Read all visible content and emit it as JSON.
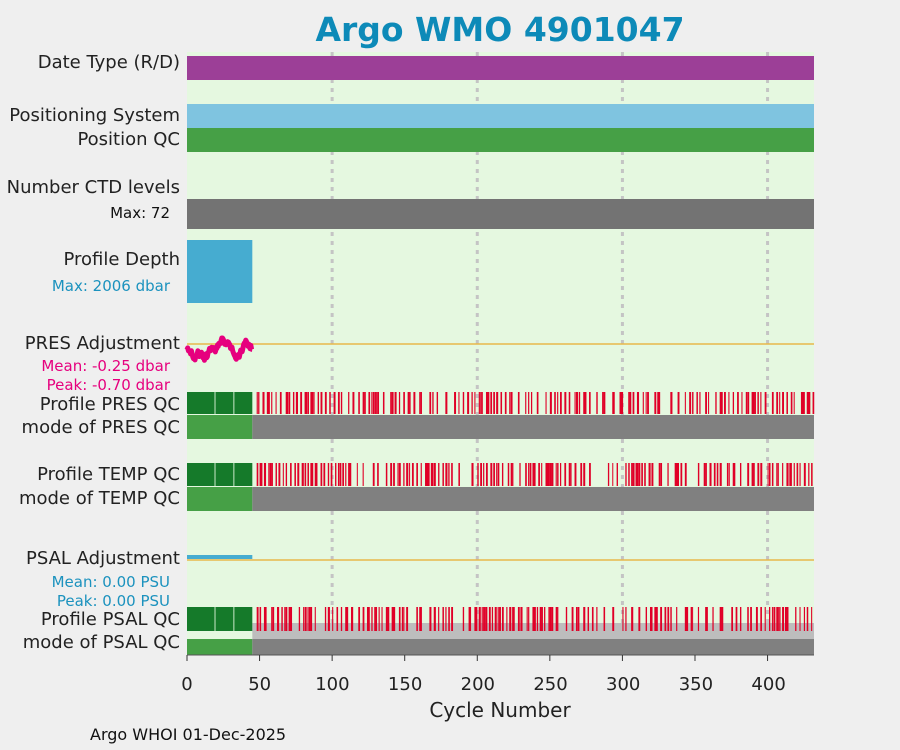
{
  "title": "Argo WMO 4901047",
  "footer": "Argo WHOI 01-Dec-2025",
  "colors": {
    "plot_bg": "#e5f8e0",
    "date_type": "#9c3f97",
    "positioning": "#7fc4e0",
    "position_qc": "#46a046",
    "ctd_levels": "#737373",
    "profile_depth": "#46acd0",
    "pres_adjust": "#e6007e",
    "ref_line": "#e8b84a",
    "qc_good_dark": "#157a2a",
    "qc_good_light": "#46a046",
    "qc_bad": "#e00027",
    "qc_missing": "#808080",
    "qc_missing_light": "#bdbdbd",
    "psal_adjust": "#46acd0"
  },
  "labels": {
    "date_type": "Date Type (R/D)",
    "positioning": "Positioning System",
    "position_qc": "Position QC",
    "ctd_levels": "Number CTD levels",
    "ctd_max": "Max: 72",
    "profile_depth": "Profile Depth",
    "depth_max": "Max: 2006 dbar",
    "pres_adjust": "PRES Adjustment",
    "pres_mean": "Mean: -0.25 dbar",
    "pres_peak": "Peak: -0.70 dbar",
    "profile_pres_qc": "Profile PRES QC",
    "mode_pres_qc": "mode of PRES QC",
    "profile_temp_qc": "Profile TEMP QC",
    "mode_temp_qc": "mode of TEMP QC",
    "psal_adjust": "PSAL Adjustment",
    "psal_mean": "Mean: 0.00 PSU",
    "psal_peak": "Peak: 0.00 PSU",
    "profile_psal_qc": "Profile PSAL QC",
    "mode_psal_qc": "mode of PSAL QC"
  },
  "chart_data": {
    "type": "bar",
    "title": "Argo WMO 4901047",
    "xlabel": "Cycle Number",
    "xlim": [
      0,
      432
    ],
    "xticks": [
      0,
      50,
      100,
      150,
      200,
      250,
      300,
      350,
      400
    ],
    "grid_x": [
      100,
      200,
      300,
      400
    ],
    "rows": [
      {
        "name": "Date Type (R/D)",
        "segments": [
          {
            "from": 0,
            "to": 432
          }
        ]
      },
      {
        "name": "Positioning System",
        "segments": [
          {
            "from": 0,
            "to": 432
          }
        ]
      },
      {
        "name": "Position QC",
        "segments": [
          {
            "from": 0,
            "to": 432
          }
        ]
      },
      {
        "name": "Number CTD levels",
        "max": 72,
        "segments": [
          {
            "from": 0,
            "to": 432
          }
        ]
      },
      {
        "name": "Profile Depth",
        "max_dbar": 2006,
        "segments": [
          {
            "from": 0,
            "to": 45
          }
        ]
      },
      {
        "name": "PRES Adjustment",
        "mean_dbar": -0.25,
        "peak_dbar": -0.7,
        "cycle_range": [
          0,
          45
        ]
      },
      {
        "name": "Profile PRES QC",
        "good_range": [
          0,
          45
        ],
        "bad_from": 48,
        "bad_to": 432
      },
      {
        "name": "mode of PRES QC",
        "good_range": [
          0,
          45
        ],
        "missing_range": [
          45,
          432
        ]
      },
      {
        "name": "Profile TEMP QC",
        "good_range": [
          0,
          45
        ],
        "bad_from": 48,
        "bad_to": 432
      },
      {
        "name": "mode of TEMP QC",
        "good_range": [
          0,
          45
        ],
        "missing_range": [
          45,
          432
        ]
      },
      {
        "name": "PSAL Adjustment",
        "mean_psu": 0.0,
        "peak_psu": 0.0,
        "cycle_range": [
          0,
          45
        ]
      },
      {
        "name": "Profile PSAL QC",
        "good_range": [
          0,
          45
        ],
        "bad_from": 48,
        "bad_to": 432
      },
      {
        "name": "mode of PSAL QC",
        "good_range": [
          0,
          45
        ],
        "missing_range": [
          45,
          432
        ]
      }
    ]
  }
}
